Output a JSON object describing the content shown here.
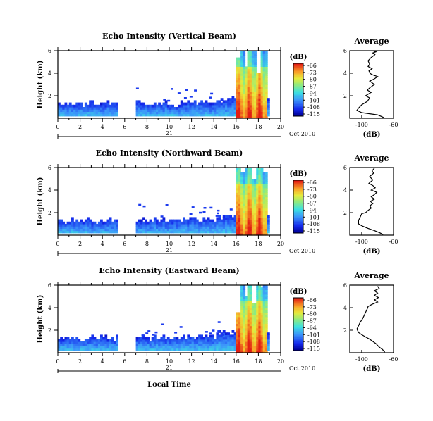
{
  "panels": [
    {
      "title": "Echo Intensity (Vertical Beam)",
      "profile_title": "Average",
      "profile": [
        [
          -85,
          5.95
        ],
        [
          -82,
          5.9
        ],
        [
          -86,
          5.8
        ],
        [
          -83,
          5.7
        ],
        [
          -84,
          5.6
        ],
        [
          -88,
          5.4
        ],
        [
          -92,
          5.1
        ],
        [
          -90,
          4.8
        ],
        [
          -92,
          4.6
        ],
        [
          -87,
          4.4
        ],
        [
          -91,
          4.2
        ],
        [
          -88,
          3.9
        ],
        [
          -80,
          3.7
        ],
        [
          -84,
          3.5
        ],
        [
          -90,
          3.3
        ],
        [
          -84,
          3.0
        ],
        [
          -90,
          2.7
        ],
        [
          -93,
          2.5
        ],
        [
          -88,
          2.3
        ],
        [
          -95,
          2.0
        ],
        [
          -90,
          1.8
        ],
        [
          -93,
          1.5
        ],
        [
          -100,
          1.2
        ],
        [
          -104,
          0.9
        ],
        [
          -106,
          0.7
        ],
        [
          -100,
          0.5
        ],
        [
          -90,
          0.4
        ],
        [
          -80,
          0.3
        ],
        [
          -75,
          0.15
        ],
        [
          -72,
          0.05
        ]
      ],
      "rain_tops": [
        5.4,
        6.0,
        4.5,
        6.0,
        6.0,
        4.0,
        6.0,
        6.0
      ]
    },
    {
      "title": "Echo Intensity (Northward Beam)",
      "profile_title": "Average",
      "profile": [
        [
          -84,
          5.95
        ],
        [
          -87,
          5.7
        ],
        [
          -85,
          5.5
        ],
        [
          -90,
          5.2
        ],
        [
          -86,
          4.9
        ],
        [
          -91,
          4.6
        ],
        [
          -86,
          4.4
        ],
        [
          -83,
          4.2
        ],
        [
          -88,
          4.0
        ],
        [
          -81,
          3.8
        ],
        [
          -84,
          3.6
        ],
        [
          -88,
          3.4
        ],
        [
          -84,
          3.2
        ],
        [
          -89,
          3.0
        ],
        [
          -86,
          2.8
        ],
        [
          -90,
          2.6
        ],
        [
          -88,
          2.4
        ],
        [
          -92,
          2.2
        ],
        [
          -95,
          2.0
        ],
        [
          -100,
          1.9
        ],
        [
          -102,
          1.6
        ],
        [
          -104,
          1.3
        ],
        [
          -104,
          1.0
        ],
        [
          -99,
          0.8
        ],
        [
          -92,
          0.6
        ],
        [
          -84,
          0.4
        ],
        [
          -77,
          0.2
        ],
        [
          -73,
          0.05
        ]
      ],
      "rain_tops": [
        6.0,
        5.6,
        6.0,
        6.0,
        5.0,
        6.0,
        6.0,
        5.5
      ]
    },
    {
      "title": "Echo Intensity (Eastward Beam)",
      "profile_title": "Average",
      "profile": [
        [
          -80,
          5.9
        ],
        [
          -78,
          5.7
        ],
        [
          -84,
          5.5
        ],
        [
          -80,
          5.3
        ],
        [
          -84,
          5.1
        ],
        [
          -79,
          4.9
        ],
        [
          -84,
          4.7
        ],
        [
          -80,
          4.5
        ],
        [
          -87,
          4.3
        ],
        [
          -92,
          4.1
        ],
        [
          -93,
          3.9
        ],
        [
          -95,
          3.6
        ],
        [
          -97,
          3.3
        ],
        [
          -99,
          3.0
        ],
        [
          -102,
          2.7
        ],
        [
          -104,
          2.4
        ],
        [
          -106,
          2.1
        ],
        [
          -104,
          1.8
        ],
        [
          -100,
          1.6
        ],
        [
          -95,
          1.4
        ],
        [
          -90,
          1.2
        ],
        [
          -86,
          1.0
        ],
        [
          -82,
          0.8
        ],
        [
          -78,
          0.5
        ],
        [
          -74,
          0.3
        ],
        [
          -71,
          0.05
        ]
      ],
      "rain_tops": [
        3.6,
        6.0,
        5.0,
        6.0,
        4.4,
        6.0,
        5.8,
        6.0
      ]
    }
  ],
  "axes": {
    "ylabel": "Height (km)",
    "y_ticks": [
      "6",
      "4",
      "2"
    ],
    "y_range": [
      0,
      6
    ],
    "x_ticks": [
      "0",
      "2",
      "4",
      "6",
      "8",
      "10",
      "12",
      "14",
      "16",
      "18",
      "20"
    ],
    "x_range": [
      0,
      20
    ],
    "day_label": "21",
    "month_label": "Oct 2010",
    "xlabel": "Local Time"
  },
  "colorbar": {
    "unit": "(dB)",
    "ticks": [
      "-66",
      "-73",
      "-80",
      "-87",
      "-94",
      "-101",
      "-108",
      "-115"
    ]
  },
  "profile_axes": {
    "x_ticks": [
      "-100",
      "-60"
    ],
    "x_range": [
      -115,
      -60
    ],
    "xlabel": "(dB)",
    "y_ticks": [
      "6",
      "4",
      "2"
    ]
  },
  "chart_data": [
    {
      "type": "heatmap",
      "title": "Echo Intensity (Vertical Beam)",
      "xlabel": "21 Oct 2010 (Local Time)",
      "ylabel": "Height (km)",
      "xlim": [
        0,
        20
      ],
      "ylim": [
        0,
        6
      ],
      "colorbar_label": "(dB)",
      "colorbar_range": [
        -115,
        -66
      ],
      "data_gaps_hours": [
        [
          5.3,
          7.0
        ]
      ],
      "rain_period_hours": [
        15.9,
        18.7
      ]
    },
    {
      "type": "line",
      "title": "Average",
      "xlabel": "(dB)",
      "ylabel": "Height (km)",
      "xlim": [
        -115,
        -60
      ],
      "ylim": [
        0,
        6
      ]
    },
    {
      "type": "heatmap",
      "title": "Echo Intensity (Northward Beam)",
      "xlabel": "21 Oct 2010 (Local Time)",
      "ylabel": "Height (km)",
      "xlim": [
        0,
        20
      ],
      "ylim": [
        0,
        6
      ],
      "colorbar_label": "(dB)",
      "colorbar_range": [
        -115,
        -66
      ],
      "data_gaps_hours": [
        [
          5.3,
          7.0
        ]
      ],
      "rain_period_hours": [
        15.9,
        18.7
      ]
    },
    {
      "type": "line",
      "title": "Average",
      "xlabel": "(dB)",
      "ylabel": "Height (km)",
      "xlim": [
        -115,
        -60
      ],
      "ylim": [
        0,
        6
      ]
    },
    {
      "type": "heatmap",
      "title": "Echo Intensity (Eastward Beam)",
      "xlabel": "Local Time",
      "ylabel": "Height (km)",
      "xlim": [
        0,
        20
      ],
      "ylim": [
        0,
        6
      ],
      "colorbar_label": "(dB)",
      "colorbar_range": [
        -115,
        -66
      ],
      "data_gaps_hours": [
        [
          5.3,
          7.0
        ]
      ],
      "rain_period_hours": [
        15.9,
        18.7
      ]
    },
    {
      "type": "line",
      "title": "Average",
      "xlabel": "(dB)",
      "ylabel": "Height (km)",
      "xlim": [
        -115,
        -60
      ],
      "ylim": [
        0,
        6
      ]
    }
  ]
}
